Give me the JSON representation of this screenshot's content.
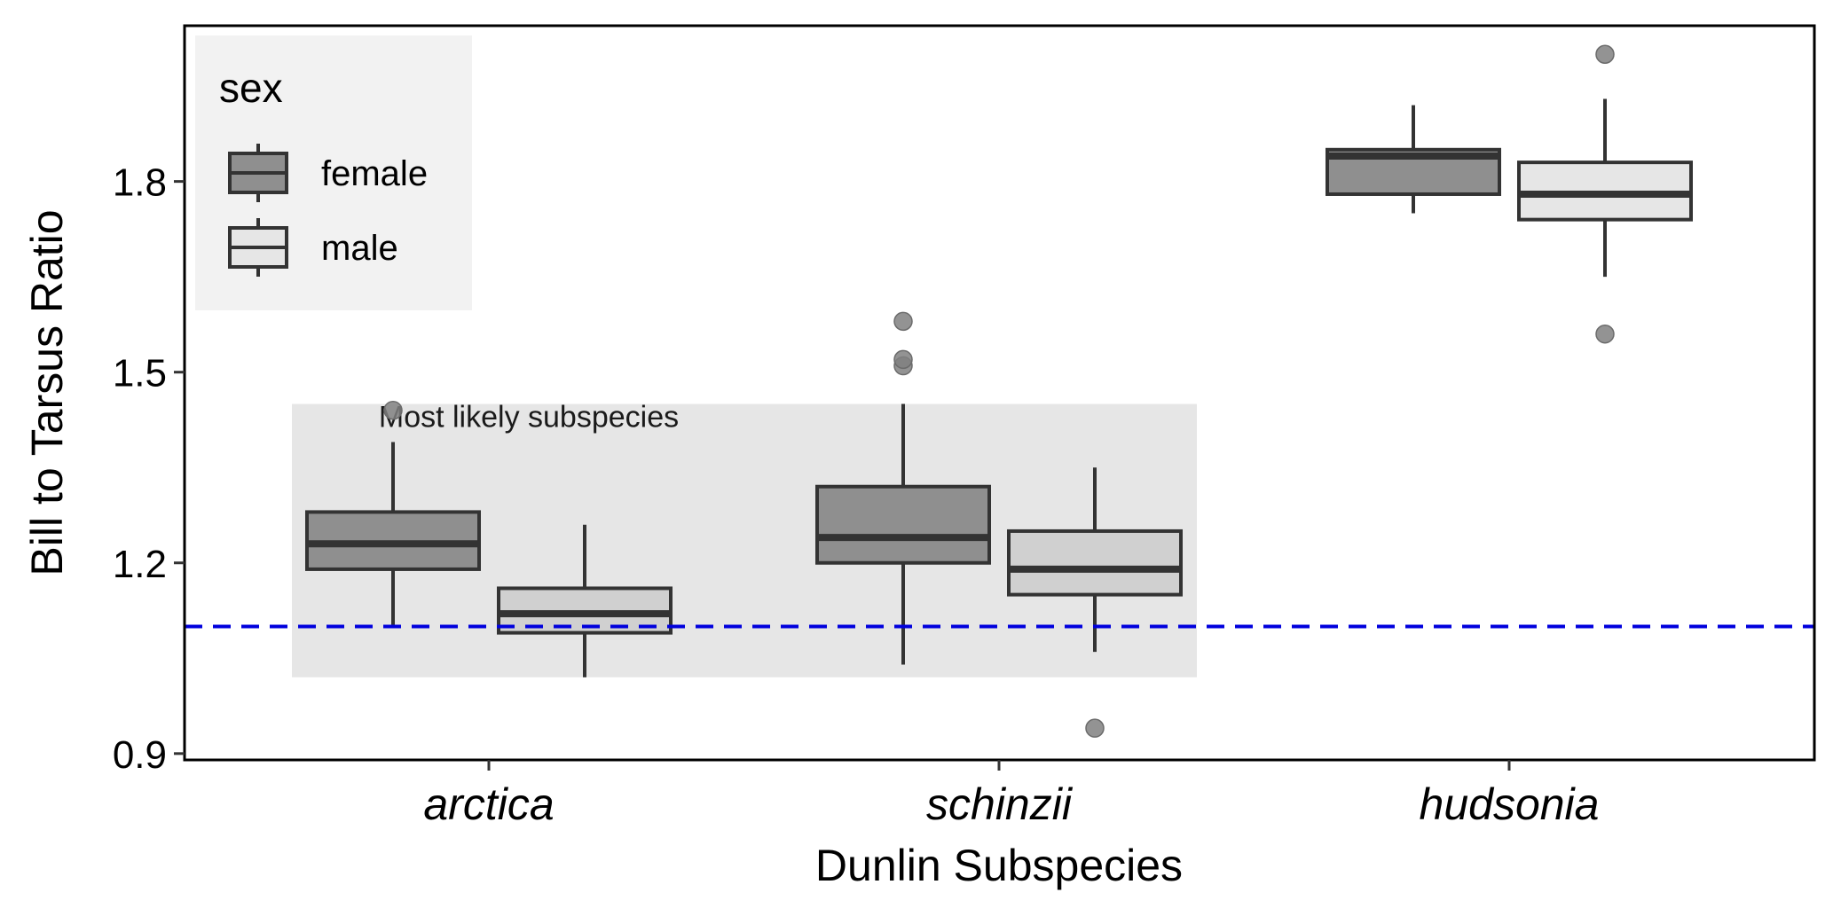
{
  "chart_data": {
    "type": "box",
    "xlabel": "Dunlin Subspecies",
    "ylabel": "Bill to Tarsus Ratio",
    "categories": [
      "arctica",
      "schinzii",
      "hudsonia"
    ],
    "yticks": [
      "0.9",
      "1.2",
      "1.5",
      "1.8"
    ],
    "ytick_values": [
      0.9,
      1.2,
      1.5,
      1.8
    ],
    "ylim": [
      0.89,
      2.045
    ],
    "legend": {
      "title": "sex",
      "position": "top-left",
      "entries": [
        {
          "label": "female",
          "color": "#8f8f8f"
        },
        {
          "label": "male",
          "color": "#e6e6e6"
        }
      ]
    },
    "reference_line": {
      "y": 1.1,
      "color": "#0000dd",
      "style": "dashed"
    },
    "annotation": {
      "text": "Most likely subspecies",
      "region": {
        "x_from": "arctica",
        "x_to": "schinzii",
        "y_from": 1.02,
        "y_to": 1.45
      },
      "color": "#e6e6e6"
    },
    "series": [
      {
        "name": "female",
        "color": "#8f8f8f",
        "boxes": [
          {
            "category": "arctica",
            "lower_whisker": 1.1,
            "q1": 1.19,
            "median": 1.23,
            "q3": 1.28,
            "upper_whisker": 1.39,
            "outliers": [
              1.44
            ]
          },
          {
            "category": "schinzii",
            "lower_whisker": 1.04,
            "q1": 1.2,
            "median": 1.24,
            "q3": 1.32,
            "upper_whisker": 1.45,
            "outliers": [
              1.51,
              1.52,
              1.58
            ]
          },
          {
            "category": "hudsonia",
            "lower_whisker": 1.75,
            "q1": 1.78,
            "median": 1.84,
            "q3": 1.85,
            "upper_whisker": 1.92,
            "outliers": []
          }
        ]
      },
      {
        "name": "male",
        "color": "#e6e6e6",
        "color_in_shaded_region": "#d0d0d0",
        "boxes": [
          {
            "category": "arctica",
            "lower_whisker": 1.02,
            "q1": 1.09,
            "median": 1.12,
            "q3": 1.16,
            "upper_whisker": 1.26,
            "outliers": []
          },
          {
            "category": "schinzii",
            "lower_whisker": 1.06,
            "q1": 1.15,
            "median": 1.19,
            "q3": 1.25,
            "upper_whisker": 1.35,
            "outliers": [
              0.94
            ]
          },
          {
            "category": "hudsonia",
            "lower_whisker": 1.65,
            "q1": 1.74,
            "median": 1.78,
            "q3": 1.83,
            "upper_whisker": 1.93,
            "outliers": [
              1.56,
              2.0
            ]
          }
        ]
      }
    ]
  }
}
